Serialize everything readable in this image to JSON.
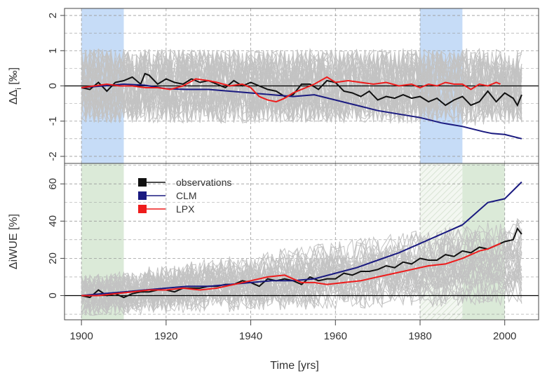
{
  "figure": {
    "xlabel": "Time [yrs]",
    "x_ticks": [
      "1900",
      "1920",
      "1940",
      "1960",
      "1980",
      "2000"
    ]
  },
  "colors": {
    "observations": "#111111",
    "CLM": "#1a1a80",
    "LPX": "#ee1c1c",
    "ensemble": "#c3c3c3",
    "blue_band": "#c6dcf7",
    "green_band": "#dbead8",
    "grid": "#9a9a9a"
  },
  "legend": [
    {
      "label": "observations",
      "color": "#111111"
    },
    {
      "label": "CLM",
      "color": "#1a1a80"
    },
    {
      "label": "LPX",
      "color": "#ee1c1c"
    }
  ],
  "chart_data": [
    {
      "type": "line",
      "panel": "top",
      "ylabel": "ΔΔ_i [‰]",
      "ylabel_main": "ΔΔ",
      "ylabel_sub": "i",
      "ylabel_unit": "[‰]",
      "xlim": [
        1896,
        2008
      ],
      "ylim": [
        -2.2,
        2.2
      ],
      "y_ticks": [
        "-2",
        "-1",
        "0",
        "1",
        "2"
      ],
      "shaded_periods": [
        {
          "from": 1900,
          "to": 1910,
          "color": "blue"
        },
        {
          "from": 1980,
          "to": 1990,
          "color": "blue"
        }
      ],
      "series": [
        {
          "name": "observations",
          "x": [
            1900,
            1902,
            1904,
            1906,
            1908,
            1910,
            1912,
            1914,
            1915,
            1916,
            1918,
            1920,
            1922,
            1924,
            1926,
            1928,
            1930,
            1932,
            1934,
            1936,
            1938,
            1940,
            1942,
            1944,
            1946,
            1948,
            1950,
            1952,
            1954,
            1956,
            1958,
            1960,
            1962,
            1964,
            1966,
            1968,
            1970,
            1972,
            1974,
            1976,
            1978,
            1980,
            1982,
            1984,
            1986,
            1988,
            1990,
            1992,
            1994,
            1996,
            1998,
            2000,
            2002,
            2003,
            2004
          ],
          "y": [
            -0.05,
            -0.1,
            0.1,
            -0.15,
            0.1,
            0.15,
            0.25,
            0.05,
            0.35,
            0.3,
            0.05,
            0.2,
            0.1,
            0.05,
            0.2,
            0.1,
            0.15,
            0.05,
            -0.05,
            0.15,
            0.0,
            0.1,
            0.0,
            -0.1,
            -0.15,
            -0.3,
            -0.25,
            0.05,
            0.05,
            -0.1,
            0.15,
            0.1,
            -0.15,
            -0.2,
            -0.3,
            -0.15,
            -0.4,
            -0.3,
            -0.35,
            -0.25,
            -0.35,
            -0.3,
            -0.45,
            -0.35,
            -0.55,
            -0.4,
            -0.3,
            -0.55,
            -0.45,
            -0.15,
            -0.45,
            -0.2,
            -0.35,
            -0.55,
            -0.25
          ]
        },
        {
          "name": "CLM",
          "x": [
            1900,
            1905,
            1910,
            1915,
            1920,
            1925,
            1930,
            1935,
            1940,
            1945,
            1950,
            1955,
            1960,
            1965,
            1970,
            1975,
            1980,
            1985,
            1990,
            1995,
            1997,
            2000,
            2004
          ],
          "y": [
            -0.05,
            0.0,
            0.05,
            0.02,
            -0.08,
            -0.1,
            -0.1,
            -0.15,
            -0.2,
            -0.25,
            -0.3,
            -0.25,
            -0.4,
            -0.55,
            -0.7,
            -0.8,
            -0.9,
            -1.05,
            -1.15,
            -1.3,
            -1.35,
            -1.38,
            -1.5
          ]
        },
        {
          "name": "LPX",
          "x": [
            1900,
            1903,
            1906,
            1909,
            1912,
            1915,
            1918,
            1921,
            1924,
            1927,
            1930,
            1932,
            1935,
            1938,
            1940,
            1942,
            1944,
            1946,
            1948,
            1950,
            1952,
            1955,
            1958,
            1960,
            1963,
            1966,
            1969,
            1972,
            1975,
            1978,
            1980,
            1982,
            1984,
            1986,
            1988,
            1990,
            1992,
            1994,
            1996,
            1998,
            1999
          ],
          "y": [
            -0.05,
            0.0,
            0.05,
            0.0,
            0.0,
            -0.05,
            -0.05,
            -0.1,
            0.0,
            0.2,
            0.15,
            0.1,
            0.0,
            0.05,
            -0.05,
            -0.3,
            -0.4,
            -0.45,
            -0.35,
            -0.2,
            -0.1,
            0.05,
            0.25,
            0.1,
            0.15,
            0.1,
            0.05,
            0.1,
            0.0,
            0.05,
            -0.05,
            0.05,
            0.0,
            0.1,
            0.05,
            0.05,
            -0.1,
            0.05,
            0.0,
            0.1,
            0.05
          ]
        }
      ]
    },
    {
      "type": "line",
      "panel": "bottom",
      "ylabel": "ΔiWUE [%]",
      "xlim": [
        1896,
        2008
      ],
      "ylim": [
        -13,
        71
      ],
      "y_ticks": [
        "0",
        "20",
        "40",
        "60"
      ],
      "shaded_periods": [
        {
          "from": 1900,
          "to": 1910,
          "color": "green"
        },
        {
          "from": 1980,
          "to": 1990,
          "color": "hatched"
        },
        {
          "from": 1990,
          "to": 2000,
          "color": "green"
        }
      ],
      "series": [
        {
          "name": "observations",
          "x": [
            1900,
            1902,
            1904,
            1906,
            1908,
            1910,
            1912,
            1914,
            1916,
            1918,
            1920,
            1922,
            1924,
            1926,
            1928,
            1930,
            1932,
            1934,
            1936,
            1938,
            1940,
            1942,
            1944,
            1946,
            1948,
            1950,
            1952,
            1954,
            1956,
            1958,
            1960,
            1962,
            1964,
            1966,
            1968,
            1970,
            1972,
            1974,
            1976,
            1978,
            1980,
            1982,
            1984,
            1986,
            1988,
            1990,
            1992,
            1994,
            1996,
            1998,
            2000,
            2002,
            2003,
            2004
          ],
          "y": [
            0,
            -1,
            3,
            0,
            1,
            -1,
            1,
            2,
            2,
            3,
            3,
            2,
            4,
            4,
            4,
            5,
            5,
            6,
            6,
            8,
            7,
            5,
            9,
            8,
            9,
            8,
            6,
            10,
            8,
            9,
            9,
            12,
            11,
            13,
            13,
            14,
            16,
            15,
            18,
            17,
            20,
            19,
            19,
            22,
            21,
            24,
            23,
            26,
            25,
            27,
            29,
            30,
            36,
            33
          ]
        },
        {
          "name": "CLM",
          "x": [
            1900,
            1905,
            1910,
            1915,
            1920,
            1925,
            1930,
            1935,
            1940,
            1945,
            1950,
            1955,
            1960,
            1965,
            1970,
            1975,
            1980,
            1985,
            1990,
            1993,
            1996,
            2000,
            2004
          ],
          "y": [
            0,
            1,
            2,
            3,
            4,
            5,
            5,
            6,
            7,
            8,
            8,
            9,
            12,
            15,
            19,
            23,
            28,
            33,
            38,
            44,
            50,
            52,
            61
          ]
        },
        {
          "name": "LPX",
          "x": [
            1900,
            1904,
            1908,
            1912,
            1916,
            1920,
            1924,
            1928,
            1932,
            1936,
            1940,
            1944,
            1948,
            1950,
            1952,
            1955,
            1958,
            1962,
            1966,
            1970,
            1974,
            1978,
            1982,
            1986,
            1990,
            1994,
            1996,
            1998,
            1999
          ],
          "y": [
            0,
            0,
            1,
            2,
            3,
            3,
            4,
            3,
            4,
            6,
            8,
            10,
            11,
            9,
            7,
            7,
            6,
            7,
            8,
            10,
            12,
            14,
            16,
            17,
            20,
            24,
            25,
            27,
            28
          ]
        }
      ]
    }
  ]
}
